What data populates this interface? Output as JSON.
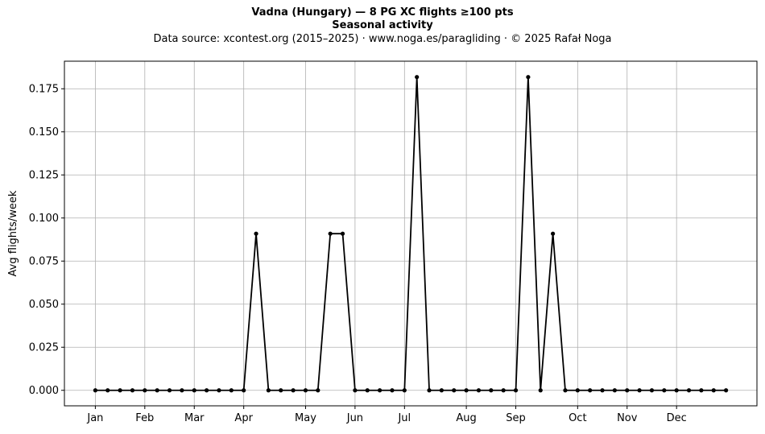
{
  "chart_data": {
    "type": "line",
    "title": "Vadna (Hungary)  —  8 PG XC flights ≥100 pts",
    "subtitle": "Seasonal activity",
    "caption": "Data source: xcontest.org (2015–2025)  ·  www.noga.es/paragliding  ·  © 2025 Rafał Noga",
    "xlabel": "",
    "ylabel": "Avg flights/week",
    "ylim": [
      -0.009,
      0.191
    ],
    "xlim": [
      -2.5,
      53.5
    ],
    "grid": true,
    "xticks": [
      {
        "label": "Jan",
        "x": 0
      },
      {
        "label": "Feb",
        "x": 4
      },
      {
        "label": "Mar",
        "x": 8
      },
      {
        "label": "Apr",
        "x": 12
      },
      {
        "label": "May",
        "x": 17
      },
      {
        "label": "Jun",
        "x": 21
      },
      {
        "label": "Jul",
        "x": 25
      },
      {
        "label": "Aug",
        "x": 30
      },
      {
        "label": "Sep",
        "x": 34
      },
      {
        "label": "Oct",
        "x": 39
      },
      {
        "label": "Nov",
        "x": 43
      },
      {
        "label": "Dec",
        "x": 47
      }
    ],
    "yticks": [
      0.0,
      0.025,
      0.05,
      0.075,
      0.1,
      0.125,
      0.15,
      0.175
    ],
    "ytick_labels": [
      "0.000",
      "0.025",
      "0.050",
      "0.075",
      "0.100",
      "0.125",
      "0.150",
      "0.175"
    ],
    "series": [
      {
        "color": "#000000",
        "x": [
          0,
          1,
          2,
          3,
          4,
          5,
          6,
          7,
          8,
          9,
          10,
          11,
          12,
          13,
          14,
          15,
          16,
          17,
          18,
          19,
          20,
          21,
          22,
          23,
          24,
          25,
          26,
          27,
          28,
          29,
          30,
          31,
          32,
          33,
          34,
          35,
          36,
          37,
          38,
          39,
          40,
          41,
          42,
          43,
          44,
          45,
          46,
          47,
          48,
          49,
          50,
          51
        ],
        "values": [
          0,
          0,
          0,
          0,
          0,
          0,
          0,
          0,
          0,
          0,
          0,
          0,
          0,
          0.0909,
          0,
          0,
          0,
          0,
          0,
          0.0909,
          0.0909,
          0,
          0,
          0,
          0,
          0,
          0.1818,
          0,
          0,
          0,
          0,
          0,
          0,
          0,
          0,
          0.1818,
          0,
          0.0909,
          0,
          0,
          0,
          0,
          0,
          0,
          0,
          0,
          0,
          0,
          0,
          0,
          0,
          0
        ]
      }
    ]
  }
}
